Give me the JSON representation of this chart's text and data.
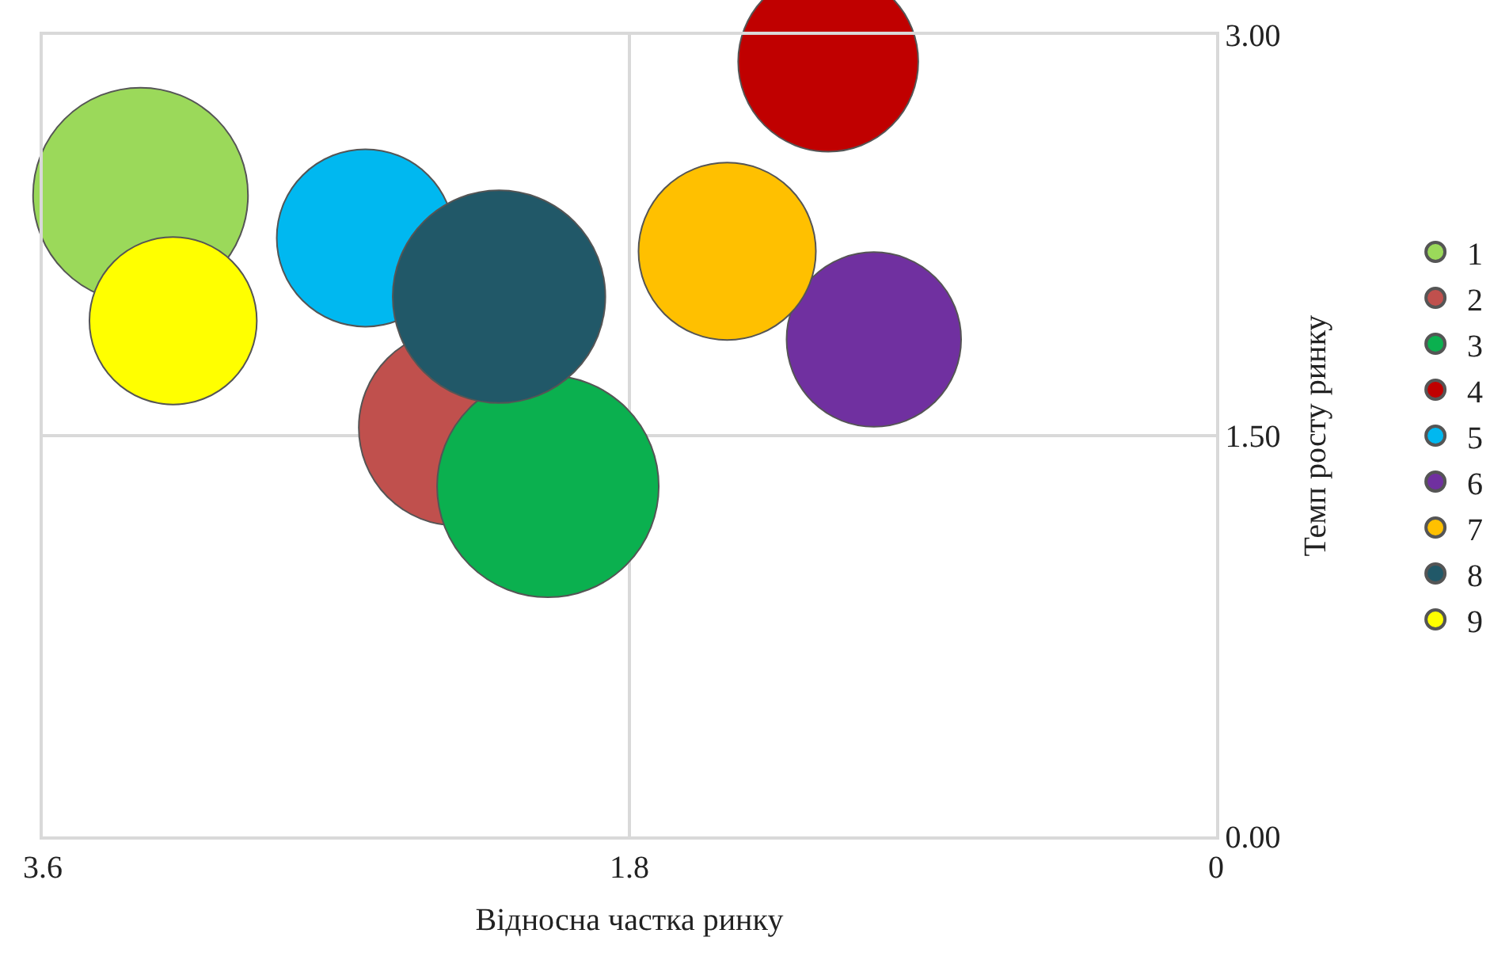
{
  "chart_data": {
    "type": "bubble",
    "xlabel": "Відносна частка ринку",
    "ylabel": "Темп росту ринку",
    "xlim": [
      3.6,
      0
    ],
    "xticks": [
      3.6,
      1.8,
      0
    ],
    "ylim": [
      0,
      3
    ],
    "yticks": [
      {
        "value": 0,
        "label": "0.00"
      },
      {
        "value": 1.5,
        "label": "1.50"
      },
      {
        "value": 3,
        "label": "3.00"
      }
    ],
    "grid": true,
    "legend": "right",
    "series": [
      {
        "name": "1",
        "color": "#9bd95a",
        "x": [
          3.3
        ],
        "values": [
          2.4
        ],
        "sizes": [
          0.94
        ]
      },
      {
        "name": "2",
        "color": "#c0504d",
        "x": [
          2.33
        ],
        "values": [
          1.53
        ],
        "sizes": [
          0.78
        ]
      },
      {
        "name": "3",
        "color": "#0bb04f",
        "x": [
          2.05
        ],
        "values": [
          1.31
        ],
        "sizes": [
          1.0
        ]
      },
      {
        "name": "4",
        "color": "#c00000",
        "x": [
          1.19
        ],
        "values": [
          2.9
        ],
        "sizes": [
          0.66
        ]
      },
      {
        "name": "5",
        "color": "#00b8f0",
        "x": [
          2.61
        ],
        "values": [
          2.24
        ],
        "sizes": [
          0.64
        ]
      },
      {
        "name": "6",
        "color": "#7030a0",
        "x": [
          1.05
        ],
        "values": [
          1.86
        ],
        "sizes": [
          0.62
        ]
      },
      {
        "name": "7",
        "color": "#ffc000",
        "x": [
          1.5
        ],
        "values": [
          2.19
        ],
        "sizes": [
          0.64
        ]
      },
      {
        "name": "8",
        "color": "#215868",
        "x": [
          2.2
        ],
        "values": [
          2.02
        ],
        "sizes": [
          0.92
        ]
      },
      {
        "name": "9",
        "color": "#ffff00",
        "x": [
          3.2
        ],
        "values": [
          1.93
        ],
        "sizes": [
          0.57
        ]
      }
    ]
  }
}
